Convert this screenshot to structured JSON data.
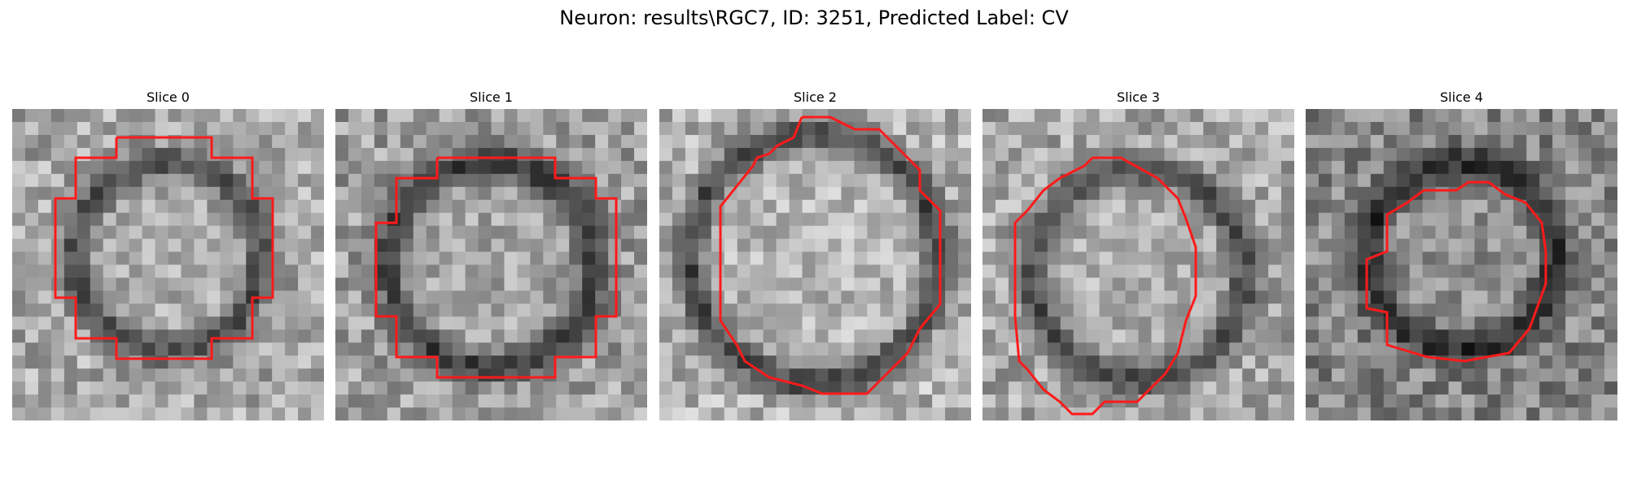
{
  "figure": {
    "title": "Neuron: results\\RGC7, ID: 3251, Predicted Label: CV"
  },
  "contour_color": "#ff1a1a",
  "panels": [
    {
      "title": "Slice 0",
      "bright": 0.66,
      "ring_dark": 0.3
    },
    {
      "title": "Slice 1",
      "bright": 0.62,
      "ring_dark": 0.24
    },
    {
      "title": "Slice 2",
      "bright": 0.7,
      "ring_dark": 0.28
    },
    {
      "title": "Slice 3",
      "bright": 0.66,
      "ring_dark": 0.3
    },
    {
      "title": "Slice 4",
      "bright": 0.52,
      "ring_dark": 0.18
    }
  ]
}
